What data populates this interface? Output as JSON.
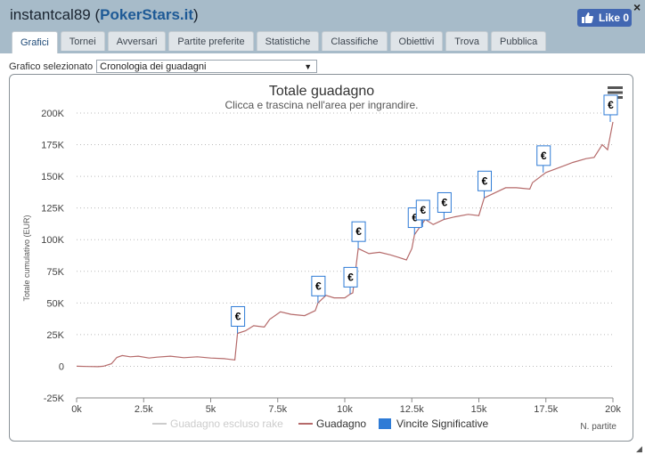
{
  "window": {
    "user": "instantcal89",
    "site": "PokerStars.it",
    "like_label": "Like 0",
    "close_label": "×"
  },
  "tabs": [
    {
      "label": "Grafici",
      "active": true
    },
    {
      "label": "Tornei"
    },
    {
      "label": "Avversari"
    },
    {
      "label": "Partite preferite"
    },
    {
      "label": "Statistiche"
    },
    {
      "label": "Classifiche"
    },
    {
      "label": "Obiettivi"
    },
    {
      "label": "Trova"
    },
    {
      "label": "Pubblica"
    }
  ],
  "selector": {
    "label": "Grafico selezionato",
    "value": "Cronologia dei guadagni"
  },
  "chart_data": {
    "type": "line",
    "title": "Totale guadagno",
    "subtitle": "Clicca e trascina nell'area per ingrandire.",
    "xlabel": "N. partite",
    "ylabel": "Totale cumulativo (EUR)",
    "x_ticks": [
      "0k",
      "2.5k",
      "5k",
      "7.5k",
      "10k",
      "12.5k",
      "15k",
      "17.5k",
      "20k"
    ],
    "y_ticks": [
      "200K",
      "175K",
      "150K",
      "125K",
      "100K",
      "75K",
      "50K",
      "25K",
      "0",
      "-25K"
    ],
    "xlim": [
      0,
      20000
    ],
    "ylim": [
      -25000,
      200000
    ],
    "grid": "horizontal dotted",
    "series": [
      {
        "name": "Guadagno escluso rake",
        "color": "#cccccc",
        "visible": false,
        "values": []
      },
      {
        "name": "Guadagno",
        "color": "#b56a6a",
        "points": [
          [
            0,
            0
          ],
          [
            400,
            -200
          ],
          [
            800,
            -300
          ],
          [
            1000,
            0
          ],
          [
            1300,
            2000
          ],
          [
            1500,
            7000
          ],
          [
            1700,
            8500
          ],
          [
            2000,
            7500
          ],
          [
            2300,
            8000
          ],
          [
            2700,
            6500
          ],
          [
            3000,
            7200
          ],
          [
            3500,
            8000
          ],
          [
            4000,
            6800
          ],
          [
            4500,
            7500
          ],
          [
            5000,
            6500
          ],
          [
            5500,
            6000
          ],
          [
            5900,
            5000
          ],
          [
            6000,
            26000
          ],
          [
            6300,
            28000
          ],
          [
            6600,
            32000
          ],
          [
            7000,
            31000
          ],
          [
            7200,
            37000
          ],
          [
            7600,
            43000
          ],
          [
            8000,
            41000
          ],
          [
            8500,
            40000
          ],
          [
            8900,
            44000
          ],
          [
            9000,
            50000
          ],
          [
            9300,
            56000
          ],
          [
            9600,
            54000
          ],
          [
            10000,
            54000
          ],
          [
            10200,
            57000
          ],
          [
            10300,
            58000
          ],
          [
            10500,
            93000
          ],
          [
            10900,
            89000
          ],
          [
            11300,
            90000
          ],
          [
            11700,
            88000
          ],
          [
            12000,
            86000
          ],
          [
            12300,
            84000
          ],
          [
            12500,
            93000
          ],
          [
            12600,
            104000
          ],
          [
            12800,
            110000
          ],
          [
            13000,
            116000
          ],
          [
            13300,
            112000
          ],
          [
            13700,
            116000
          ],
          [
            14100,
            118000
          ],
          [
            14600,
            120000
          ],
          [
            15000,
            119000
          ],
          [
            15200,
            133000
          ],
          [
            15600,
            137000
          ],
          [
            16000,
            141000
          ],
          [
            16400,
            141000
          ],
          [
            16900,
            140000
          ],
          [
            17000,
            145000
          ],
          [
            17500,
            153000
          ],
          [
            18000,
            157000
          ],
          [
            18500,
            161000
          ],
          [
            19000,
            164000
          ],
          [
            19300,
            165000
          ],
          [
            19600,
            175000
          ],
          [
            19800,
            171000
          ],
          [
            20000,
            193000
          ]
        ]
      }
    ],
    "markers": {
      "name": "Vincite Significative",
      "color": "#2e7bd6",
      "symbol": "€",
      "points": [
        [
          6000,
          26000
        ],
        [
          9000,
          50000
        ],
        [
          10200,
          57000
        ],
        [
          10500,
          93000
        ],
        [
          12600,
          104000
        ],
        [
          12900,
          110000
        ],
        [
          13700,
          116000
        ],
        [
          15200,
          133000
        ],
        [
          17400,
          153000
        ],
        [
          19900,
          193000
        ]
      ]
    },
    "legend": [
      "Guadagno escluso rake",
      "Guadagno",
      "Vincite Significative"
    ],
    "legend_position": "bottom"
  }
}
